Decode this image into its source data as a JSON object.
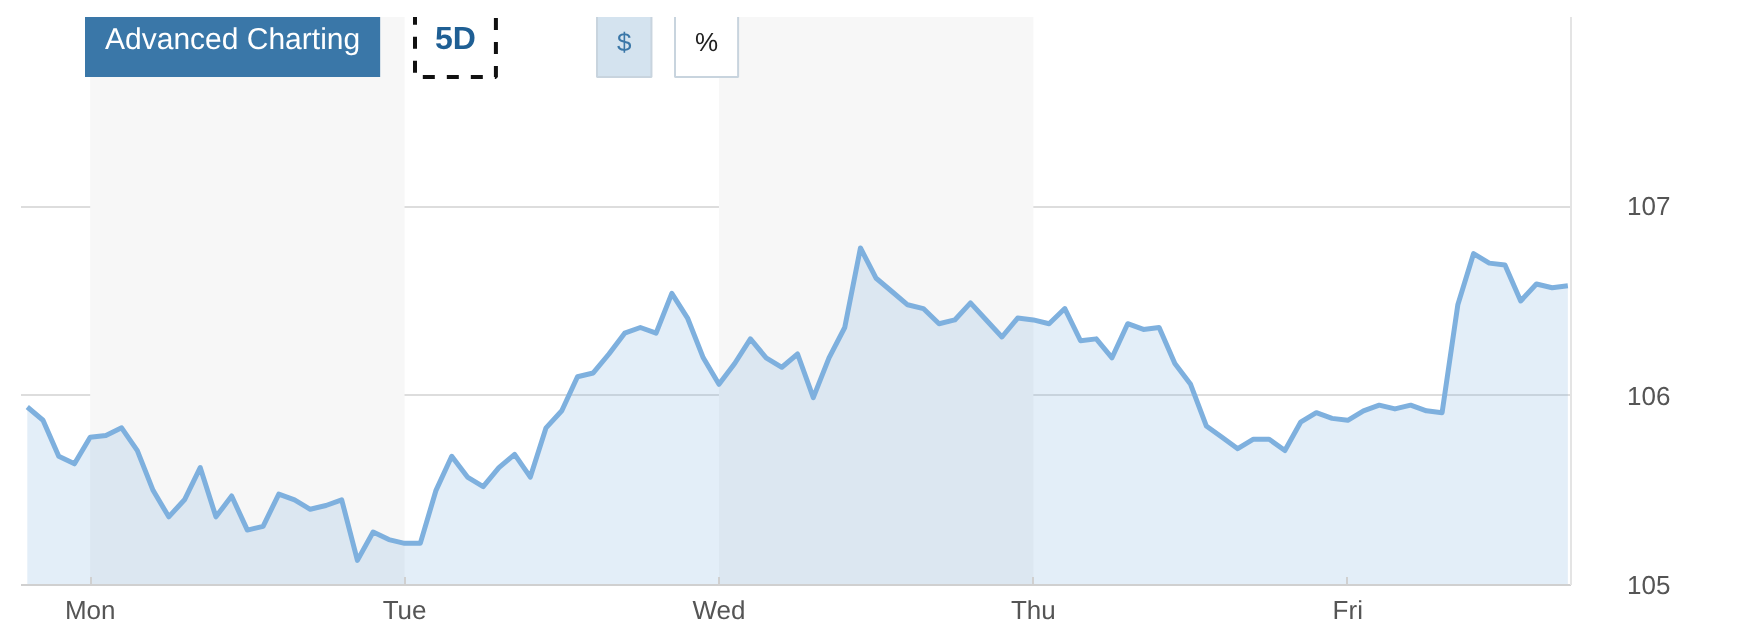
{
  "chart_data": {
    "type": "area",
    "categories": [
      null,
      null,
      null,
      null,
      "Mon",
      null,
      null,
      null,
      null,
      null,
      null,
      null,
      null,
      null,
      null,
      null,
      null,
      null,
      null,
      null,
      null,
      null,
      null,
      null,
      "Tue",
      null,
      null,
      null,
      null,
      null,
      null,
      null,
      null,
      null,
      null,
      null,
      null,
      null,
      null,
      null,
      null,
      null,
      null,
      null,
      "Wed",
      null,
      null,
      null,
      null,
      null,
      null,
      null,
      null,
      null,
      null,
      null,
      null,
      null,
      null,
      null,
      null,
      null,
      null,
      null,
      "Thu",
      null,
      null,
      null,
      null,
      null,
      null,
      null,
      null,
      null,
      null,
      null,
      null,
      null,
      null,
      null,
      null,
      null,
      null,
      null,
      "Fri",
      null,
      null,
      null,
      null,
      null,
      null,
      null,
      null,
      null,
      null,
      null,
      null,
      null,
      null
    ],
    "series": [
      {
        "color": "#7eb0de",
        "values": [
          105.94,
          105.87,
          105.68,
          105.64,
          105.78,
          105.79,
          105.83,
          105.71,
          105.5,
          105.36,
          105.45,
          105.62,
          105.36,
          105.47,
          105.29,
          105.31,
          105.48,
          105.45,
          105.4,
          105.42,
          105.45,
          105.13,
          105.28,
          105.24,
          105.22,
          105.22,
          105.5,
          105.68,
          105.57,
          105.52,
          105.62,
          105.69,
          105.57,
          105.83,
          105.92,
          106.1,
          106.12,
          106.22,
          106.33,
          106.36,
          106.33,
          106.54,
          106.41,
          106.2,
          106.06,
          106.17,
          106.3,
          106.2,
          106.15,
          106.22,
          105.99,
          106.2,
          106.36,
          106.78,
          106.62,
          106.55,
          106.48,
          106.46,
          106.38,
          106.4,
          106.49,
          106.4,
          106.31,
          106.41,
          106.4,
          106.38,
          106.46,
          106.29,
          106.3,
          106.2,
          106.38,
          106.35,
          106.36,
          106.17,
          106.06,
          105.84,
          105.78,
          105.72,
          105.77,
          105.77,
          105.71,
          105.86,
          105.91,
          105.88,
          105.87,
          105.92,
          105.95,
          105.93,
          105.95,
          105.92,
          105.91,
          106.48,
          106.75,
          106.7,
          106.69,
          106.5,
          106.59,
          106.57,
          106.58
        ]
      }
    ],
    "ylim": [
      105,
      108
    ],
    "yticks": [
      105,
      106,
      107
    ],
    "grid": "y",
    "bands": [
      {
        "axis": "x",
        "from": "Mon",
        "to": "Tue",
        "color": "#f7f7f7"
      },
      {
        "axis": "x",
        "from": "Wed",
        "to": "Thu",
        "color": "#f7f7f7"
      }
    ],
    "annotations": [
      "Advanced Charting",
      "5D",
      "$",
      "%"
    ]
  }
}
